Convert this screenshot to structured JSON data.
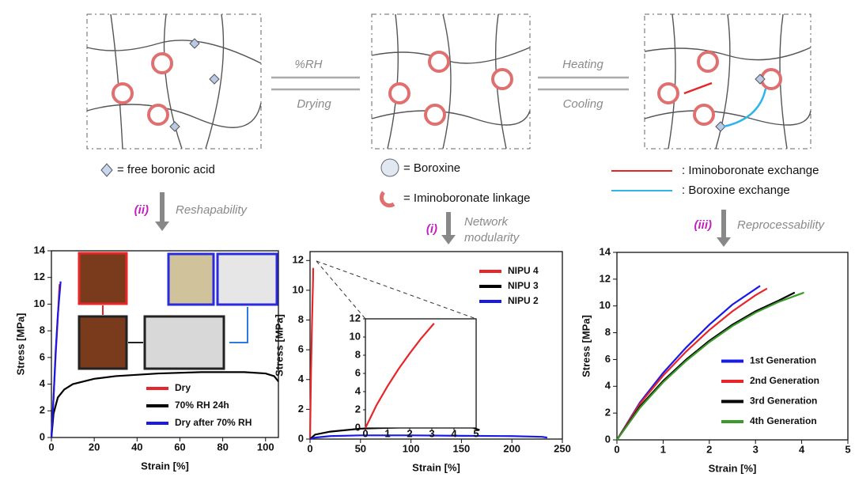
{
  "diagram": {
    "transitions": [
      {
        "forward": "%RH",
        "backward": "Drying"
      },
      {
        "forward": "Heating",
        "backward": "Cooling"
      }
    ],
    "legend": [
      "= free boronic acid",
      "= Boroxine",
      "= Iminoboronate linkage",
      ": Iminoboronate exchange",
      ": Boroxine exchange"
    ],
    "processes": [
      {
        "label": "(ii)",
        "name": [
          "Reshapability"
        ]
      },
      {
        "label": "(i)",
        "name": [
          "Network",
          "modularity"
        ]
      },
      {
        "label": "(iii)",
        "name": [
          "Reprocessability"
        ]
      }
    ]
  },
  "chart_data": [
    {
      "type": "line",
      "xlabel": "Strain [%]",
      "ylabel": "Stress [MPa]",
      "xlim": [
        0,
        106
      ],
      "ylim": [
        0,
        14
      ],
      "xticks": [
        0,
        20,
        40,
        60,
        80,
        100
      ],
      "yticks": [
        0,
        2,
        4,
        6,
        8,
        10,
        12,
        14
      ],
      "legend": "lower center",
      "series": [
        {
          "name": "Dry",
          "color": "#e8262a",
          "x": [
            0,
            1,
            2,
            3,
            3.8
          ],
          "values": [
            0,
            3,
            6.2,
            9,
            11.5
          ]
        },
        {
          "name": "70% RH 24h",
          "color": "#000000",
          "x": [
            0,
            1,
            3,
            6,
            10,
            20,
            30,
            50,
            70,
            90,
            100,
            104,
            106
          ],
          "values": [
            0,
            1.8,
            3,
            3.6,
            4,
            4.4,
            4.6,
            4.8,
            4.9,
            4.9,
            4.8,
            4.6,
            4.2
          ]
        },
        {
          "name": "Dry after 70% RH",
          "color": "#1a1ae6",
          "x": [
            0,
            1,
            2,
            3,
            4.3
          ],
          "values": [
            0,
            3,
            6.5,
            9.2,
            11.7
          ]
        }
      ]
    },
    {
      "type": "line",
      "xlabel": "Strain [%]",
      "ylabel": "Stress [MPa]",
      "xlim": [
        0,
        250
      ],
      "ylim": [
        0,
        12.6
      ],
      "xticks": [
        0,
        50,
        100,
        150,
        200,
        250
      ],
      "yticks": [
        0,
        2,
        4,
        6,
        8,
        10,
        12
      ],
      "legend": "upper right",
      "series": [
        {
          "name": "NIPU 4",
          "color": "#e8262a",
          "x": [
            0,
            1,
            2,
            3,
            3.1
          ],
          "values": [
            0,
            4.6,
            8,
            10.8,
            11.5
          ]
        },
        {
          "name": "NIPU 3",
          "color": "#000000",
          "x": [
            0,
            5,
            20,
            50,
            100,
            150,
            160,
            168
          ],
          "values": [
            0,
            0.3,
            0.5,
            0.7,
            0.8,
            0.85,
            0.8,
            0.6
          ]
        },
        {
          "name": "NIPU 2",
          "color": "#1a1ae6",
          "x": [
            0,
            5,
            20,
            50,
            100,
            150,
            200,
            230,
            235
          ],
          "values": [
            0,
            0.1,
            0.2,
            0.25,
            0.25,
            0.22,
            0.2,
            0.15,
            0.1
          ]
        }
      ]
    },
    {
      "type": "line",
      "xlim": [
        0,
        5
      ],
      "ylim": [
        0,
        12
      ],
      "xticks": [
        0,
        1,
        2,
        3,
        4,
        5
      ],
      "yticks": [
        0,
        2,
        4,
        6,
        8,
        10,
        12
      ],
      "series": [
        {
          "color": "#e8262a",
          "x": [
            0,
            0.5,
            1,
            1.5,
            2,
            2.5,
            3.1
          ],
          "values": [
            0,
            2.5,
            4.6,
            6.5,
            8.2,
            9.8,
            11.5
          ]
        }
      ]
    },
    {
      "type": "line",
      "xlabel": "Strain [%]",
      "ylabel": "Stress [MPa]",
      "xlim": [
        0,
        5
      ],
      "ylim": [
        0,
        14
      ],
      "xticks": [
        0,
        1,
        2,
        3,
        4,
        5
      ],
      "yticks": [
        0,
        2,
        4,
        6,
        8,
        10,
        12,
        14
      ],
      "legend": "lower right",
      "series": [
        {
          "name": "1st Generation",
          "color": "#1a1ae6",
          "x": [
            0,
            0.5,
            1,
            1.5,
            2,
            2.5,
            3.1
          ],
          "values": [
            0,
            2.8,
            5,
            6.9,
            8.6,
            10.1,
            11.5
          ]
        },
        {
          "name": "2nd Generation",
          "color": "#e8262a",
          "x": [
            0,
            0.5,
            1,
            1.5,
            2,
            2.5,
            3,
            3.25
          ],
          "values": [
            0,
            2.7,
            4.8,
            6.6,
            8.2,
            9.6,
            10.8,
            11.3
          ]
        },
        {
          "name": "3rd Generation",
          "color": "#000000",
          "x": [
            0,
            0.5,
            1,
            1.5,
            2,
            2.5,
            3,
            3.5,
            3.85
          ],
          "values": [
            0,
            2.5,
            4.4,
            6,
            7.4,
            8.6,
            9.6,
            10.4,
            11
          ]
        },
        {
          "name": "4th Generation",
          "color": "#3a9a2a",
          "x": [
            0,
            0.5,
            1,
            1.5,
            2,
            2.5,
            3,
            3.5,
            4.05
          ],
          "values": [
            0,
            2.4,
            4.3,
            5.9,
            7.3,
            8.5,
            9.5,
            10.3,
            11
          ]
        }
      ]
    }
  ]
}
